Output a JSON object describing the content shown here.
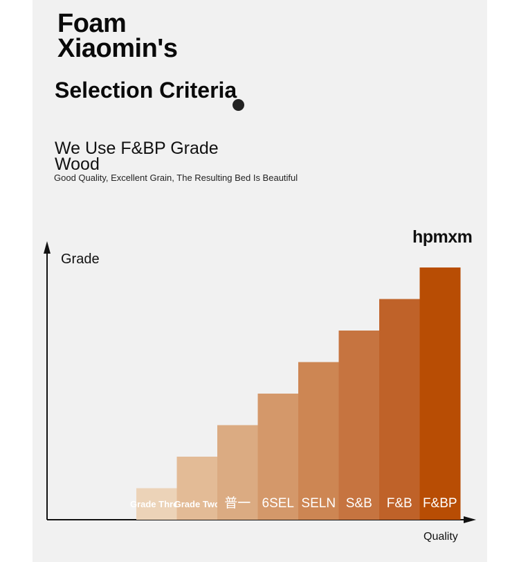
{
  "header": {
    "title_line1": "Foam",
    "title_line2": "Xiaomin's",
    "subtitle": "Selection Criteria",
    "heading": "We Use F&BP Grade Wood",
    "tagline": "Good Quality, Excellent Grain, The Resulting Bed Is Beautiful",
    "brand": "hpmxm"
  },
  "chart_data": {
    "type": "bar",
    "ylabel": "Grade",
    "xlabel": "Quality",
    "categories": [
      "Grade Three",
      "Grade Two",
      "普一",
      "6SEL",
      "SELN",
      "S&B",
      "F&B",
      "F&BP"
    ],
    "values": [
      1,
      2,
      3,
      4,
      5,
      6,
      7,
      8
    ],
    "ylim": [
      0,
      8
    ],
    "colors": [
      "#ecd3b8",
      "#e3bb96",
      "#dbab82",
      "#d4986a",
      "#cd8653",
      "#c67440",
      "#bf6229",
      "#b84d04"
    ],
    "grid": false,
    "legend": "none"
  }
}
